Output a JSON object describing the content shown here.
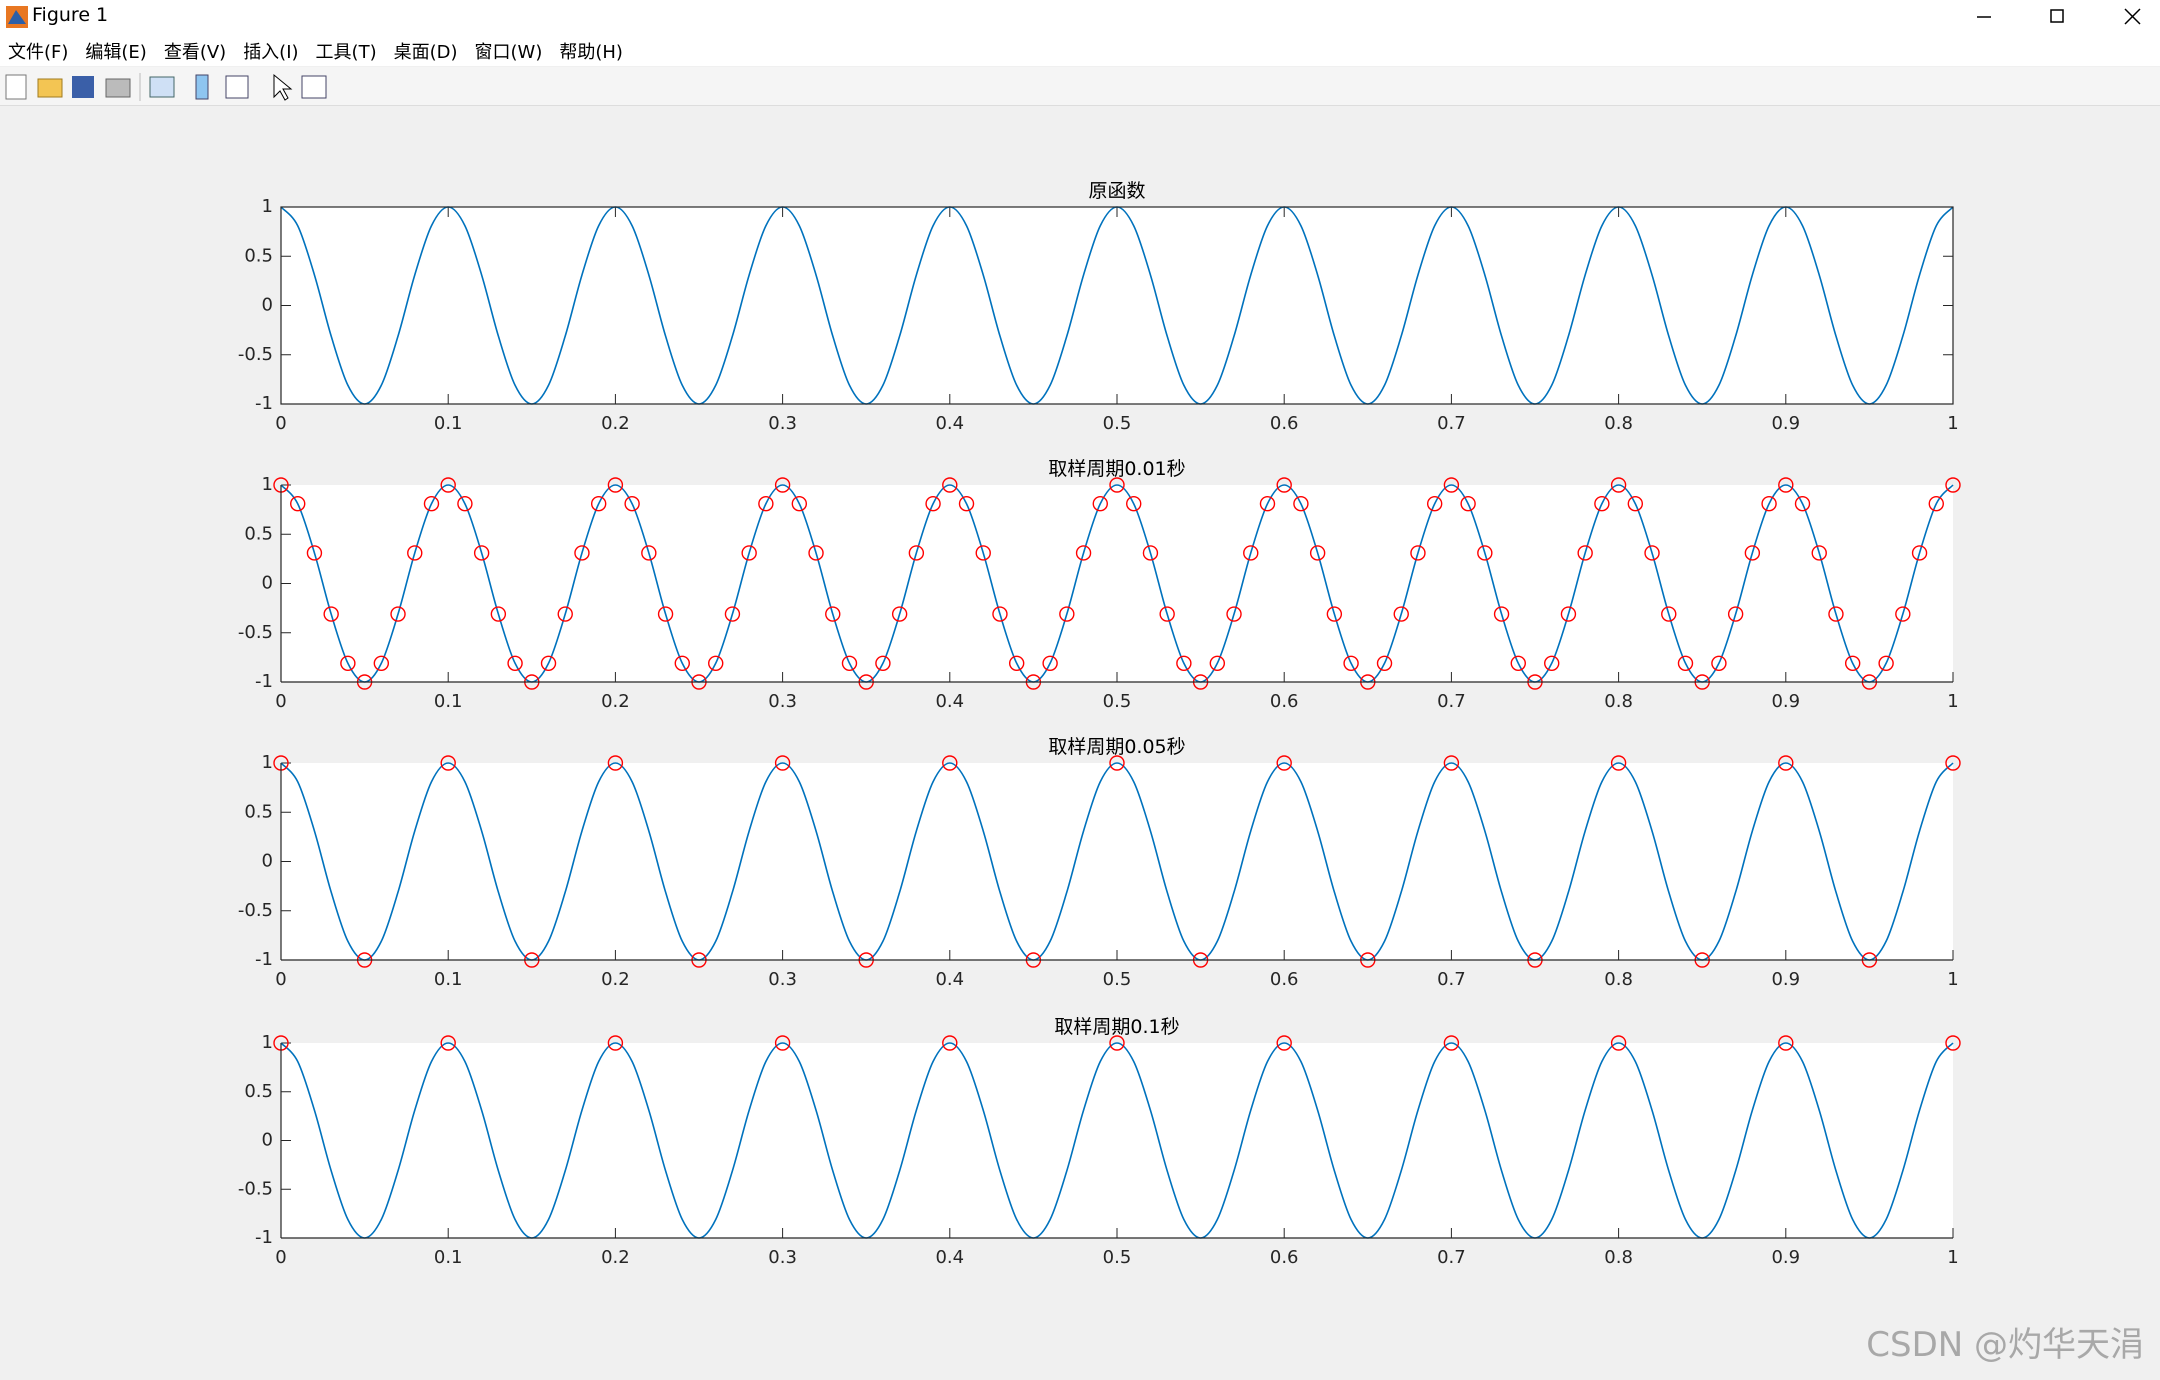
{
  "window": {
    "title": "Figure 1",
    "menu": [
      "文件(F)",
      "编辑(E)",
      "查看(V)",
      "插入(I)",
      "工具(T)",
      "桌面(D)",
      "窗口(W)",
      "帮助(H)"
    ]
  },
  "watermark": "CSDN @灼华天涓",
  "chart_data": [
    {
      "type": "line",
      "title": "原函数",
      "box": true,
      "xlim": [
        0,
        1
      ],
      "ylim": [
        -1,
        1
      ],
      "xticks": [
        0,
        0.1,
        0.2,
        0.3,
        0.4,
        0.5,
        0.6,
        0.7,
        0.8,
        0.9,
        1
      ],
      "yticks": [
        -1,
        -0.5,
        0,
        0.5,
        1
      ],
      "x": [
        0,
        0.01,
        0.02,
        0.03,
        0.04,
        0.05,
        0.06,
        0.07,
        0.08,
        0.09,
        0.1,
        0.11,
        0.12,
        0.13,
        0.14,
        0.15,
        0.16,
        0.17,
        0.18,
        0.19,
        0.2,
        0.21,
        0.22,
        0.23,
        0.24,
        0.25,
        0.26,
        0.27,
        0.28,
        0.29,
        0.3,
        0.31,
        0.32,
        0.33,
        0.34,
        0.35,
        0.36,
        0.37,
        0.38,
        0.39,
        0.4,
        0.41,
        0.42,
        0.43,
        0.44,
        0.45,
        0.46,
        0.47,
        0.48,
        0.49,
        0.5,
        0.51,
        0.52,
        0.53,
        0.54,
        0.55,
        0.56,
        0.57,
        0.58,
        0.59,
        0.6,
        0.61,
        0.62,
        0.63,
        0.64,
        0.65,
        0.66,
        0.67,
        0.68,
        0.69,
        0.7,
        0.71,
        0.72,
        0.73,
        0.74,
        0.75,
        0.76,
        0.77,
        0.78,
        0.79,
        0.8,
        0.81,
        0.82,
        0.83,
        0.84,
        0.85,
        0.86,
        0.87,
        0.88,
        0.89,
        0.9,
        0.91,
        0.92,
        0.93,
        0.94,
        0.95,
        0.96,
        0.97,
        0.98,
        0.99,
        1
      ],
      "series": [
        {
          "color": "#0072bd",
          "values": [
            1,
            0.81,
            0.31,
            -0.31,
            -0.81,
            -1,
            -0.81,
            -0.31,
            0.31,
            0.81,
            1,
            0.81,
            0.31,
            -0.31,
            -0.81,
            -1,
            -0.81,
            -0.31,
            0.31,
            0.81,
            1,
            0.81,
            0.31,
            -0.31,
            -0.81,
            -1,
            -0.81,
            -0.31,
            0.31,
            0.81,
            1,
            0.81,
            0.31,
            -0.31,
            -0.81,
            -1,
            -0.81,
            -0.31,
            0.31,
            0.81,
            1,
            0.81,
            0.31,
            -0.31,
            -0.81,
            -1,
            -0.81,
            -0.31,
            0.31,
            0.81,
            1,
            0.81,
            0.31,
            -0.31,
            -0.81,
            -1,
            -0.81,
            -0.31,
            0.31,
            0.81,
            1,
            0.81,
            0.31,
            -0.31,
            -0.81,
            -1,
            -0.81,
            -0.31,
            0.31,
            0.81,
            1,
            0.81,
            0.31,
            -0.31,
            -0.81,
            -1,
            -0.81,
            -0.31,
            0.31,
            0.81,
            1,
            0.81,
            0.31,
            -0.31,
            -0.81,
            -1,
            -0.81,
            -0.31,
            0.31,
            0.81,
            1,
            0.81,
            0.31,
            -0.31,
            -0.81,
            -1,
            -0.81,
            -0.31,
            0.31,
            0.81,
            1
          ]
        }
      ]
    },
    {
      "type": "line",
      "title": "取样周期0.01秒",
      "box": false,
      "xlim": [
        0,
        1
      ],
      "ylim": [
        -1,
        1
      ],
      "xticks": [
        0,
        0.1,
        0.2,
        0.3,
        0.4,
        0.5,
        0.6,
        0.7,
        0.8,
        0.9,
        1
      ],
      "yticks": [
        -1,
        -0.5,
        0,
        0.5,
        1
      ],
      "x": [
        0,
        0.01,
        0.02,
        0.03,
        0.04,
        0.05,
        0.06,
        0.07,
        0.08,
        0.09,
        0.1,
        0.11,
        0.12,
        0.13,
        0.14,
        0.15,
        0.16,
        0.17,
        0.18,
        0.19,
        0.2,
        0.21,
        0.22,
        0.23,
        0.24,
        0.25,
        0.26,
        0.27,
        0.28,
        0.29,
        0.3,
        0.31,
        0.32,
        0.33,
        0.34,
        0.35,
        0.36,
        0.37,
        0.38,
        0.39,
        0.4,
        0.41,
        0.42,
        0.43,
        0.44,
        0.45,
        0.46,
        0.47,
        0.48,
        0.49,
        0.5,
        0.51,
        0.52,
        0.53,
        0.54,
        0.55,
        0.56,
        0.57,
        0.58,
        0.59,
        0.6,
        0.61,
        0.62,
        0.63,
        0.64,
        0.65,
        0.66,
        0.67,
        0.68,
        0.69,
        0.7,
        0.71,
        0.72,
        0.73,
        0.74,
        0.75,
        0.76,
        0.77,
        0.78,
        0.79,
        0.8,
        0.81,
        0.82,
        0.83,
        0.84,
        0.85,
        0.86,
        0.87,
        0.88,
        0.89,
        0.9,
        0.91,
        0.92,
        0.93,
        0.94,
        0.95,
        0.96,
        0.97,
        0.98,
        0.99,
        1
      ],
      "series": [
        {
          "color": "#0072bd",
          "values": [
            1,
            0.81,
            0.31,
            -0.31,
            -0.81,
            -1,
            -0.81,
            -0.31,
            0.31,
            0.81,
            1,
            0.81,
            0.31,
            -0.31,
            -0.81,
            -1,
            -0.81,
            -0.31,
            0.31,
            0.81,
            1,
            0.81,
            0.31,
            -0.31,
            -0.81,
            -1,
            -0.81,
            -0.31,
            0.31,
            0.81,
            1,
            0.81,
            0.31,
            -0.31,
            -0.81,
            -1,
            -0.81,
            -0.31,
            0.31,
            0.81,
            1,
            0.81,
            0.31,
            -0.31,
            -0.81,
            -1,
            -0.81,
            -0.31,
            0.31,
            0.81,
            1,
            0.81,
            0.31,
            -0.31,
            -0.81,
            -1,
            -0.81,
            -0.31,
            0.31,
            0.81,
            1,
            0.81,
            0.31,
            -0.31,
            -0.81,
            -1,
            -0.81,
            -0.31,
            0.31,
            0.81,
            1,
            0.81,
            0.31,
            -0.31,
            -0.81,
            -1,
            -0.81,
            -0.31,
            0.31,
            0.81,
            1,
            0.81,
            0.31,
            -0.31,
            -0.81,
            -1,
            -0.81,
            -0.31,
            0.31,
            0.81,
            1,
            0.81,
            0.31,
            -0.31,
            -0.81,
            -1,
            -0.81,
            -0.31,
            0.31,
            0.81,
            1
          ]
        },
        {
          "color": "#ff0000",
          "marker": "o",
          "line": false,
          "values": [
            1,
            0.81,
            0.31,
            -0.31,
            -0.81,
            -1,
            -0.81,
            -0.31,
            0.31,
            0.81,
            1,
            0.81,
            0.31,
            -0.31,
            -0.81,
            -1,
            -0.81,
            -0.31,
            0.31,
            0.81,
            1,
            0.81,
            0.31,
            -0.31,
            -0.81,
            -1,
            -0.81,
            -0.31,
            0.31,
            0.81,
            1,
            0.81,
            0.31,
            -0.31,
            -0.81,
            -1,
            -0.81,
            -0.31,
            0.31,
            0.81,
            1,
            0.81,
            0.31,
            -0.31,
            -0.81,
            -1,
            -0.81,
            -0.31,
            0.31,
            0.81,
            1,
            0.81,
            0.31,
            -0.31,
            -0.81,
            -1,
            -0.81,
            -0.31,
            0.31,
            0.81,
            1,
            0.81,
            0.31,
            -0.31,
            -0.81,
            -1,
            -0.81,
            -0.31,
            0.31,
            0.81,
            1,
            0.81,
            0.31,
            -0.31,
            -0.81,
            -1,
            -0.81,
            -0.31,
            0.31,
            0.81,
            1,
            0.81,
            0.31,
            -0.31,
            -0.81,
            -1,
            -0.81,
            -0.31,
            0.31,
            0.81,
            1,
            0.81,
            0.31,
            -0.31,
            -0.81,
            -1,
            -0.81,
            -0.31,
            0.31,
            0.81,
            1
          ]
        }
      ]
    },
    {
      "type": "line",
      "title": "取样周期0.05秒",
      "box": false,
      "xlim": [
        0,
        1
      ],
      "ylim": [
        -1,
        1
      ],
      "xticks": [
        0,
        0.1,
        0.2,
        0.3,
        0.4,
        0.5,
        0.6,
        0.7,
        0.8,
        0.9,
        1
      ],
      "yticks": [
        -1,
        -0.5,
        0,
        0.5,
        1
      ],
      "x": [
        0,
        0.01,
        0.02,
        0.03,
        0.04,
        0.05,
        0.06,
        0.07,
        0.08,
        0.09,
        0.1,
        0.11,
        0.12,
        0.13,
        0.14,
        0.15,
        0.16,
        0.17,
        0.18,
        0.19,
        0.2,
        0.21,
        0.22,
        0.23,
        0.24,
        0.25,
        0.26,
        0.27,
        0.28,
        0.29,
        0.3,
        0.31,
        0.32,
        0.33,
        0.34,
        0.35,
        0.36,
        0.37,
        0.38,
        0.39,
        0.4,
        0.41,
        0.42,
        0.43,
        0.44,
        0.45,
        0.46,
        0.47,
        0.48,
        0.49,
        0.5,
        0.51,
        0.52,
        0.53,
        0.54,
        0.55,
        0.56,
        0.57,
        0.58,
        0.59,
        0.6,
        0.61,
        0.62,
        0.63,
        0.64,
        0.65,
        0.66,
        0.67,
        0.68,
        0.69,
        0.7,
        0.71,
        0.72,
        0.73,
        0.74,
        0.75,
        0.76,
        0.77,
        0.78,
        0.79,
        0.8,
        0.81,
        0.82,
        0.83,
        0.84,
        0.85,
        0.86,
        0.87,
        0.88,
        0.89,
        0.9,
        0.91,
        0.92,
        0.93,
        0.94,
        0.95,
        0.96,
        0.97,
        0.98,
        0.99,
        1
      ],
      "series": [
        {
          "color": "#0072bd",
          "values": [
            1,
            0.81,
            0.31,
            -0.31,
            -0.81,
            -1,
            -0.81,
            -0.31,
            0.31,
            0.81,
            1,
            0.81,
            0.31,
            -0.31,
            -0.81,
            -1,
            -0.81,
            -0.31,
            0.31,
            0.81,
            1,
            0.81,
            0.31,
            -0.31,
            -0.81,
            -1,
            -0.81,
            -0.31,
            0.31,
            0.81,
            1,
            0.81,
            0.31,
            -0.31,
            -0.81,
            -1,
            -0.81,
            -0.31,
            0.31,
            0.81,
            1,
            0.81,
            0.31,
            -0.31,
            -0.81,
            -1,
            -0.81,
            -0.31,
            0.31,
            0.81,
            1,
            0.81,
            0.31,
            -0.31,
            -0.81,
            -1,
            -0.81,
            -0.31,
            0.31,
            0.81,
            1,
            0.81,
            0.31,
            -0.31,
            -0.81,
            -1,
            -0.81,
            -0.31,
            0.31,
            0.81,
            1,
            0.81,
            0.31,
            -0.31,
            -0.81,
            -1,
            -0.81,
            -0.31,
            0.31,
            0.81,
            1,
            0.81,
            0.31,
            -0.31,
            -0.81,
            -1,
            -0.81,
            -0.31,
            0.31,
            0.81,
            1,
            0.81,
            0.31,
            -0.31,
            -0.81,
            -1,
            -0.81,
            -0.31,
            0.31,
            0.81,
            1
          ]
        },
        {
          "color": "#ff0000",
          "marker": "o",
          "line": false,
          "x": [
            0,
            0.05,
            0.1,
            0.15,
            0.2,
            0.25,
            0.3,
            0.35,
            0.4,
            0.45,
            0.5,
            0.55,
            0.6,
            0.65,
            0.7,
            0.75,
            0.8,
            0.85,
            0.9,
            0.95,
            1
          ],
          "values": [
            1,
            -1,
            1,
            -1,
            1,
            -1,
            1,
            -1,
            1,
            -1,
            1,
            -1,
            1,
            -1,
            1,
            -1,
            1,
            -1,
            1,
            -1,
            1
          ]
        }
      ]
    },
    {
      "type": "line",
      "title": "取样周期0.1秒",
      "box": false,
      "xlim": [
        0,
        1
      ],
      "ylim": [
        -1,
        1
      ],
      "xticks": [
        0,
        0.1,
        0.2,
        0.3,
        0.4,
        0.5,
        0.6,
        0.7,
        0.8,
        0.9,
        1
      ],
      "yticks": [
        -1,
        -0.5,
        0,
        0.5,
        1
      ],
      "x": [
        0,
        0.01,
        0.02,
        0.03,
        0.04,
        0.05,
        0.06,
        0.07,
        0.08,
        0.09,
        0.1,
        0.11,
        0.12,
        0.13,
        0.14,
        0.15,
        0.16,
        0.17,
        0.18,
        0.19,
        0.2,
        0.21,
        0.22,
        0.23,
        0.24,
        0.25,
        0.26,
        0.27,
        0.28,
        0.29,
        0.3,
        0.31,
        0.32,
        0.33,
        0.34,
        0.35,
        0.36,
        0.37,
        0.38,
        0.39,
        0.4,
        0.41,
        0.42,
        0.43,
        0.44,
        0.45,
        0.46,
        0.47,
        0.48,
        0.49,
        0.5,
        0.51,
        0.52,
        0.53,
        0.54,
        0.55,
        0.56,
        0.57,
        0.58,
        0.59,
        0.6,
        0.61,
        0.62,
        0.63,
        0.64,
        0.65,
        0.66,
        0.67,
        0.68,
        0.69,
        0.7,
        0.71,
        0.72,
        0.73,
        0.74,
        0.75,
        0.76,
        0.77,
        0.78,
        0.79,
        0.8,
        0.81,
        0.82,
        0.83,
        0.84,
        0.85,
        0.86,
        0.87,
        0.88,
        0.89,
        0.9,
        0.91,
        0.92,
        0.93,
        0.94,
        0.95,
        0.96,
        0.97,
        0.98,
        0.99,
        1
      ],
      "series": [
        {
          "color": "#0072bd",
          "values": [
            1,
            0.81,
            0.31,
            -0.31,
            -0.81,
            -1,
            -0.81,
            -0.31,
            0.31,
            0.81,
            1,
            0.81,
            0.31,
            -0.31,
            -0.81,
            -1,
            -0.81,
            -0.31,
            0.31,
            0.81,
            1,
            0.81,
            0.31,
            -0.31,
            -0.81,
            -1,
            -0.81,
            -0.31,
            0.31,
            0.81,
            1,
            0.81,
            0.31,
            -0.31,
            -0.81,
            -1,
            -0.81,
            -0.31,
            0.31,
            0.81,
            1,
            0.81,
            0.31,
            -0.31,
            -0.81,
            -1,
            -0.81,
            -0.31,
            0.31,
            0.81,
            1,
            0.81,
            0.31,
            -0.31,
            -0.81,
            -1,
            -0.81,
            -0.31,
            0.31,
            0.81,
            1,
            0.81,
            0.31,
            -0.31,
            -0.81,
            -1,
            -0.81,
            -0.31,
            0.31,
            0.81,
            1,
            0.81,
            0.31,
            -0.31,
            -0.81,
            -1,
            -0.81,
            -0.31,
            0.31,
            0.81,
            1,
            0.81,
            0.31,
            -0.31,
            -0.81,
            -1,
            -0.81,
            -0.31,
            0.31,
            0.81,
            1,
            0.81,
            0.31,
            -0.31,
            -0.81,
            -1,
            -0.81,
            -0.31,
            0.31,
            0.81,
            1
          ]
        },
        {
          "color": "#ff0000",
          "marker": "o",
          "line": false,
          "x": [
            0,
            0.1,
            0.2,
            0.3,
            0.4,
            0.5,
            0.6,
            0.7,
            0.8,
            0.9,
            1
          ],
          "values": [
            1,
            1,
            1,
            1,
            1,
            1,
            1,
            1,
            1,
            1,
            1
          ]
        }
      ]
    }
  ]
}
